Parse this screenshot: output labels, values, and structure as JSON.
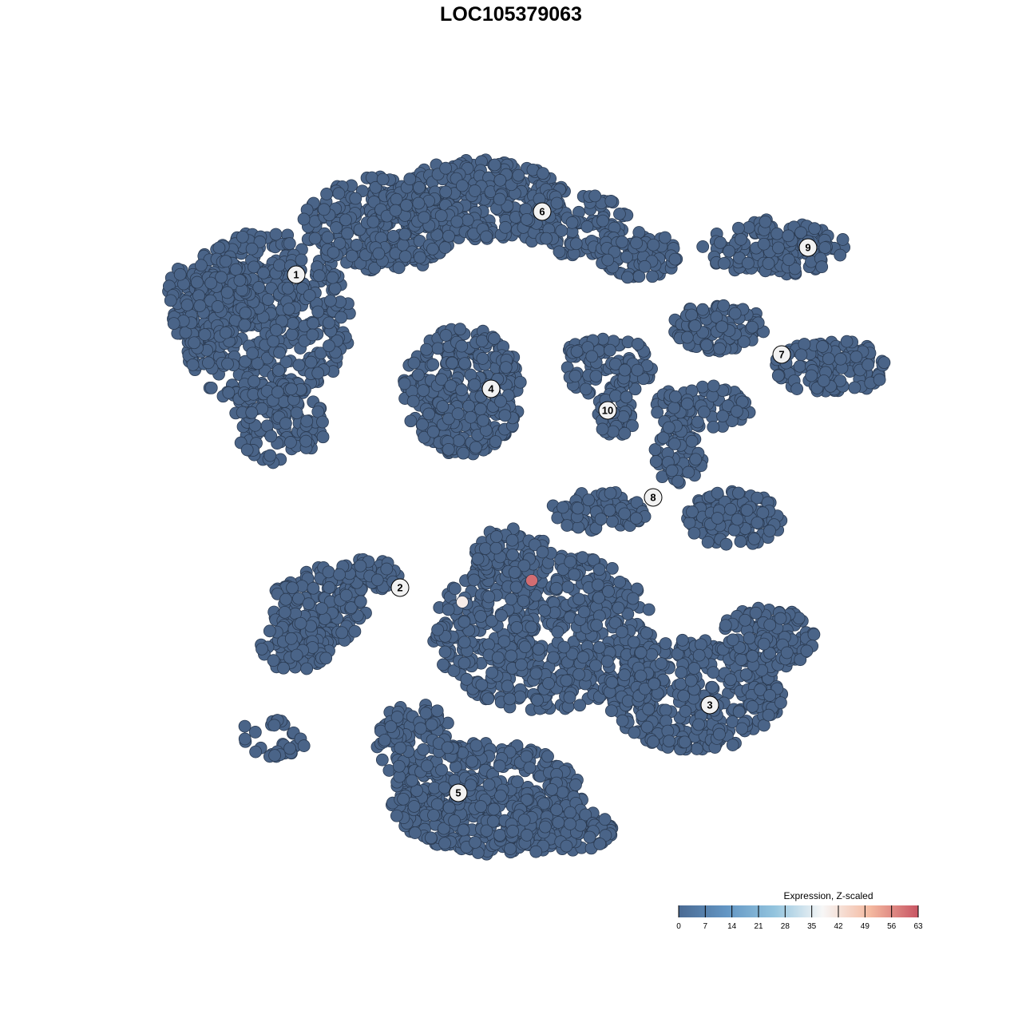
{
  "chart_data": {
    "type": "scatter",
    "title": "LOC105379063",
    "xlabel": "",
    "ylabel": "",
    "grid": false,
    "point_color_default": "#4a6488",
    "clusters": [
      {
        "label": "1",
        "x": -26.9,
        "y": 29.6
      },
      {
        "label": "2",
        "x": -13.9,
        "y": -9.6
      },
      {
        "label": "3",
        "x": 24.9,
        "y": -24.3
      },
      {
        "label": "4",
        "x": -2.5,
        "y": 15.3
      },
      {
        "label": "5",
        "x": -6.6,
        "y": -35.3
      },
      {
        "label": "6",
        "x": 3.9,
        "y": 37.5
      },
      {
        "label": "7",
        "x": 33.9,
        "y": 19.6
      },
      {
        "label": "8",
        "x": 17.8,
        "y": 1.7
      },
      {
        "label": "9",
        "x": 37.2,
        "y": 33.0
      },
      {
        "label": "10",
        "x": 12.1,
        "y": 12.6
      }
    ],
    "highlighted_points": [
      {
        "x": 2.6,
        "y": -8.7,
        "value": 60
      },
      {
        "x": -6.1,
        "y": -11.4,
        "value": 40
      }
    ],
    "legend": {
      "title": "Expression, Z-scaled",
      "placement": "bottom-right",
      "ticks": [
        "0",
        "7",
        "14",
        "21",
        "28",
        "35",
        "42",
        "49",
        "56",
        "63"
      ],
      "range": [
        0,
        63
      ],
      "colors": [
        "#4a6a93",
        "#6396c4",
        "#93c4de",
        "#f7f7f7",
        "#f4b9a0",
        "#c85563"
      ]
    }
  }
}
